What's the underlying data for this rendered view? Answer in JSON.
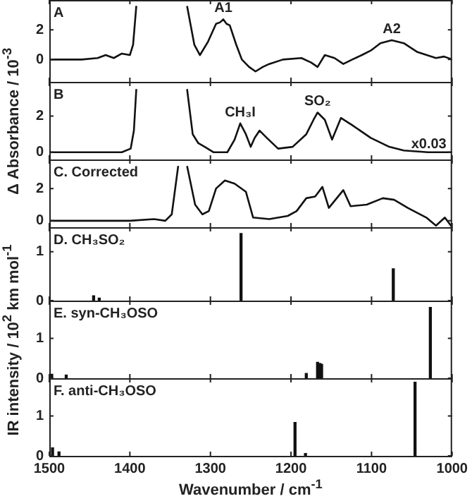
{
  "chart_data": [
    {
      "type": "line",
      "title": "A",
      "xlim": [
        1500,
        1000
      ],
      "xticks": [
        1500,
        1400,
        1300,
        1200,
        1100,
        1000
      ],
      "ylim": [
        -1.5,
        4
      ],
      "yticks": [
        0,
        2
      ],
      "tick_labels": "y",
      "grid": false,
      "legend": false,
      "marker": "none",
      "x": [
        1500,
        1480,
        1460,
        1440,
        1430,
        1420,
        1410,
        1400,
        1396,
        1392,
        1360,
        1329,
        1320,
        1313,
        1303,
        1293,
        1288,
        1284,
        1280,
        1276,
        1268,
        1261,
        1252,
        1244,
        1235,
        1227,
        1210,
        1187,
        1175,
        1167,
        1158,
        1146,
        1135,
        1124,
        1112,
        1101,
        1089,
        1075,
        1060,
        1043,
        1020,
        1010,
        1000
      ],
      "series": [
        {
          "color": "#111111",
          "values": [
            0,
            0,
            0,
            0.1,
            0.3,
            0.1,
            0.4,
            0.3,
            1.0,
            3.6,
            null,
            3.6,
            1.0,
            0.3,
            1.2,
            2.4,
            2.5,
            2.7,
            2.4,
            2.3,
            1.0,
            0,
            -0.5,
            -0.8,
            -0.5,
            -0.3,
            0,
            0.1,
            -0.2,
            -0.5,
            0.3,
            0.1,
            -0.3,
            0,
            0.3,
            0.6,
            1.1,
            1.3,
            1.1,
            0.5,
            0.1,
            0.2,
            0
          ]
        }
      ],
      "annotations": [
        {
          "text": "A1",
          "x": 1284,
          "y": 2.7
        },
        {
          "text": "A2",
          "x": 1075,
          "y": 1.3
        }
      ]
    },
    {
      "type": "line",
      "title": "B",
      "xlim": [
        1500,
        1000
      ],
      "xticks": [
        1500,
        1400,
        1300,
        1200,
        1100,
        1000
      ],
      "ylim": [
        -0.4,
        3.9
      ],
      "yticks": [
        0,
        2
      ],
      "tick_labels": "y",
      "grid": false,
      "legend": false,
      "marker": "none",
      "ylabel": "Δ Absorbance / 10$^{-3}$",
      "x": [
        1500,
        1450,
        1410,
        1399,
        1395,
        1392,
        1360,
        1329,
        1322,
        1315,
        1307,
        1296,
        1279,
        1270,
        1263,
        1256,
        1250,
        1245,
        1239,
        1230,
        1216,
        1198,
        1181,
        1172,
        1167,
        1158,
        1149,
        1138,
        1124,
        1101,
        1078,
        1060,
        1030,
        1000
      ],
      "series": [
        {
          "color": "#111111",
          "values": [
            0,
            0,
            0,
            0.2,
            1.2,
            3.5,
            null,
            3.5,
            1.0,
            0.5,
            0.3,
            0,
            0,
            0.7,
            1.6,
            1.0,
            0.3,
            0.8,
            1.2,
            0.8,
            0.2,
            0.3,
            1.0,
            1.8,
            2.2,
            1.8,
            0.7,
            1.9,
            1.5,
            0.8,
            0.3,
            0.1,
            0,
            0
          ]
        }
      ],
      "annotations": [
        {
          "text": "CH₃I",
          "x": 1263,
          "y": 1.6
        },
        {
          "text": "SO₂",
          "x": 1167,
          "y": 2.2
        },
        "x0.03"
      ]
    },
    {
      "type": "line",
      "title": "C. Corrected",
      "xlim": [
        1500,
        1000
      ],
      "xticks": [
        1500,
        1400,
        1300,
        1200,
        1100,
        1000
      ],
      "ylim": [
        -0.4,
        3.8
      ],
      "yticks": [
        0,
        2
      ],
      "tick_labels": "y",
      "grid": false,
      "legend": false,
      "marker": "none",
      "x": [
        1500,
        1450,
        1400,
        1370,
        1356,
        1348,
        1340,
        1334,
        1329,
        1319,
        1310,
        1302,
        1293,
        1282,
        1270,
        1256,
        1247,
        1227,
        1204,
        1193,
        1181,
        1170,
        1161,
        1153,
        1135,
        1126,
        1106,
        1086,
        1072,
        1055,
        1032,
        1020,
        1009,
        1000
      ],
      "series": [
        {
          "color": "#111111",
          "values": [
            0,
            0,
            0,
            0.1,
            0,
            0.4,
            3.4,
            null,
            3.4,
            1.0,
            0.4,
            0.6,
            2.0,
            2.5,
            2.3,
            1.8,
            0.2,
            0.1,
            0.3,
            0.6,
            1.4,
            1.5,
            2.1,
            0.8,
            1.9,
            0.9,
            1.0,
            1.4,
            1.3,
            0.8,
            0.2,
            -0.3,
            0.2,
            -0.4
          ]
        }
      ]
    },
    {
      "type": "bar",
      "title": "D. CH₃SO₂",
      "xlim": [
        1500,
        1000
      ],
      "xticks": [
        1500,
        1400,
        1300,
        1200,
        1100,
        1000
      ],
      "ylim": [
        0,
        1.5
      ],
      "yticks": [
        0,
        1
      ],
      "tick_labels": "y",
      "grid": false,
      "legend": false,
      "x": [
        1445,
        1438,
        1262,
        1073
      ],
      "series": [
        {
          "color": "#111111",
          "values": [
            0.1,
            0.05,
            1.37,
            0.65
          ]
        }
      ]
    },
    {
      "type": "bar",
      "title": "E. syn-CH₃OSO",
      "xlim": [
        1500,
        1000
      ],
      "xticks": [
        1500,
        1400,
        1300,
        1200,
        1100,
        1000
      ],
      "ylim": [
        0,
        1.95
      ],
      "yticks": [
        0,
        1
      ],
      "tick_labels": "y",
      "grid": false,
      "legend": false,
      "ylabel": "IR intensity / 10$^{2}$ km mol$^{-1}$",
      "x": [
        1497,
        1479,
        1181,
        1167,
        1164,
        1162,
        1027
      ],
      "series": [
        {
          "color": "#111111",
          "values": [
            0.1,
            0.08,
            0.12,
            0.4,
            0.37,
            0.35,
            1.78
          ]
        }
      ]
    },
    {
      "type": "bar",
      "title": "F. anti-CH₃OSO",
      "xlim": [
        1500,
        1000
      ],
      "xticks": [
        1500,
        1400,
        1300,
        1200,
        1100,
        1000
      ],
      "ylim": [
        0,
        1.95
      ],
      "yticks": [
        0,
        1
      ],
      "grid": false,
      "legend": false,
      "xlabel": "Wavenumber / cm$^{-1}$",
      "x": [
        1496,
        1488,
        1195,
        1182,
        1046
      ],
      "series": [
        {
          "color": "#111111",
          "values": [
            0.2,
            0.1,
            0.84,
            0.06,
            1.85
          ]
        }
      ]
    }
  ]
}
